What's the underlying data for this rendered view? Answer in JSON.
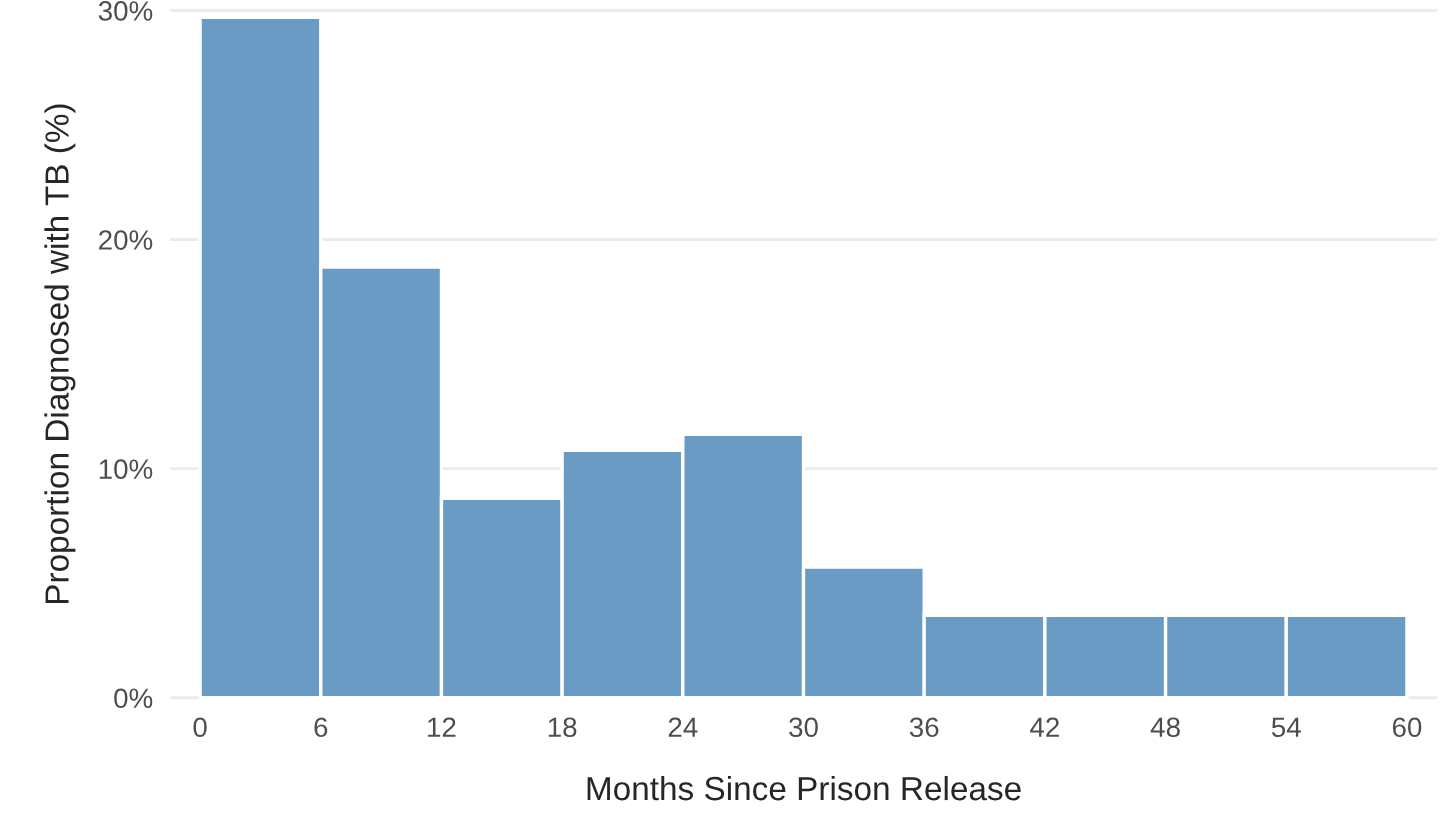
{
  "chart_data": {
    "type": "histogram",
    "xlabel": "Months Since Prison Release",
    "ylabel": "Proportion Diagnosed with TB (%)",
    "bins": [
      0,
      6,
      12,
      18,
      24,
      30,
      36,
      42,
      48,
      54,
      60
    ],
    "values": [
      29.7,
      18.8,
      8.7,
      10.8,
      11.5,
      5.7,
      3.6,
      3.6,
      3.6,
      3.6
    ],
    "color": "#6a9bc4",
    "xlim": [
      -1.5,
      61.5
    ],
    "xticks": [
      0,
      6,
      12,
      18,
      24,
      30,
      36,
      42,
      48,
      54,
      60
    ],
    "ylim": [
      -0.1,
      30.1
    ],
    "yticks": [
      {
        "value": 0,
        "label": "0%"
      },
      {
        "value": 10,
        "label": "10%"
      },
      {
        "value": 20,
        "label": "20%"
      },
      {
        "value": 30,
        "label": "30%"
      }
    ],
    "grid": "y"
  }
}
